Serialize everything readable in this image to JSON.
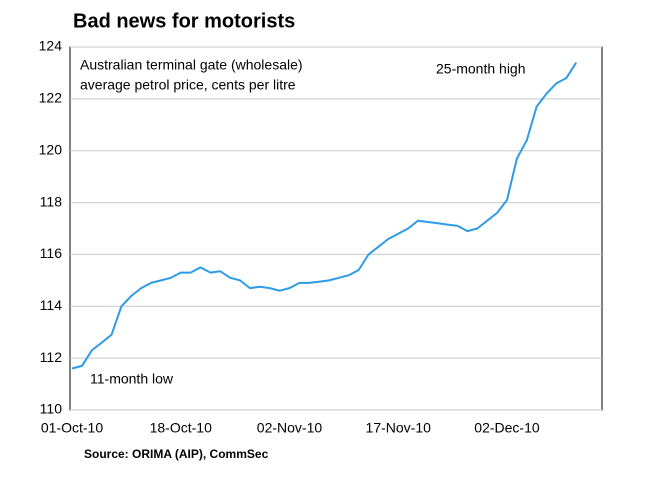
{
  "chart_data": {
    "type": "line",
    "title": "Bad news for motorists",
    "subtitle": [
      "Australian terminal gate (wholesale)",
      "average petrol price, cents per litre"
    ],
    "annotations": [
      "25-month high",
      "11-month low"
    ],
    "source": "Source: ORIMA (AIP), CommSec",
    "categories": [
      "01-Oct-10",
      null,
      null,
      null,
      null,
      null,
      null,
      null,
      null,
      null,
      null,
      "18-Oct-10",
      null,
      null,
      null,
      null,
      null,
      null,
      null,
      null,
      null,
      null,
      "02-Nov-10",
      null,
      null,
      null,
      null,
      null,
      null,
      null,
      null,
      null,
      null,
      "17-Nov-10",
      null,
      null,
      null,
      null,
      null,
      null,
      null,
      null,
      null,
      null,
      "02-Dec-10",
      null,
      null,
      null,
      null,
      null,
      null,
      null
    ],
    "values": [
      111.6,
      111.7,
      112.3,
      112.6,
      112.9,
      114.0,
      114.4,
      114.7,
      114.9,
      115.0,
      115.1,
      115.3,
      115.3,
      115.5,
      115.3,
      115.35,
      115.1,
      115.0,
      114.7,
      114.75,
      114.7,
      114.6,
      114.7,
      114.9,
      114.9,
      114.95,
      115.0,
      115.1,
      115.2,
      115.4,
      116.0,
      116.3,
      116.6,
      116.8,
      117.0,
      117.3,
      117.25,
      117.2,
      117.15,
      117.1,
      116.9,
      117.0,
      117.3,
      117.6,
      118.1,
      119.7,
      120.4,
      121.7,
      122.2,
      122.6,
      122.8,
      123.4
    ],
    "color": "#2e9be8",
    "ylim": [
      110,
      124
    ],
    "yticks": [
      110,
      112,
      114,
      116,
      118,
      120,
      122,
      124
    ],
    "grid": true
  }
}
